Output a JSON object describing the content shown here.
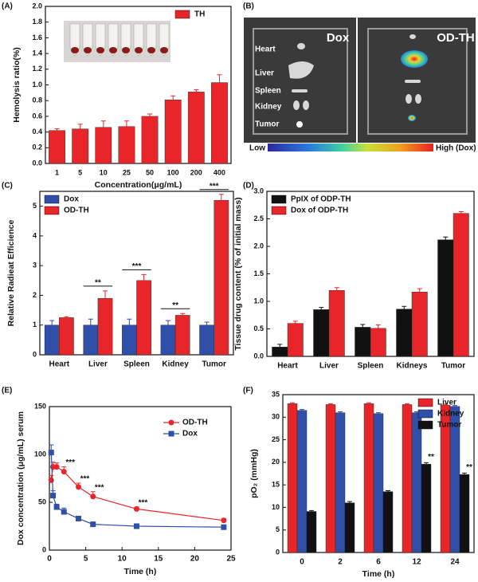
{
  "chart_data": [
    {
      "type": "bar",
      "panel": "(A)",
      "ylabel": "Hemolysis ratio(%)",
      "xlabel": "Concentration(μg/mL)",
      "categories": [
        "1",
        "5",
        "10",
        "25",
        "50",
        "100",
        "200",
        "400"
      ],
      "series": [
        {
          "name": "TH",
          "color": "#e8262a",
          "values": [
            0.42,
            0.44,
            0.46,
            0.47,
            0.6,
            0.81,
            0.91,
            1.03
          ],
          "errors": [
            0.02,
            0.06,
            0.08,
            0.07,
            0.03,
            0.05,
            0.03,
            0.1
          ]
        }
      ],
      "ylim": [
        0,
        2
      ],
      "yticks": [
        {
          "value": 0,
          "label": "0.0"
        },
        0.2,
        0.4,
        0.6,
        0.8,
        {
          "value": 1,
          "label": "1.0"
        },
        1.2,
        1.4,
        1.6,
        1.8,
        {
          "value": 2,
          "label": "2.0"
        }
      ],
      "legend": "top-right"
    },
    {
      "type": "image",
      "panel": "(B)",
      "images": [
        {
          "title": "Dox",
          "labels": [
            "Heart",
            "Liver",
            "Spleen",
            "Kidney",
            "Tumor"
          ]
        },
        {
          "title": "OD-TH"
        }
      ],
      "scale": {
        "low": "Low",
        "high": "High (Dox)"
      }
    },
    {
      "type": "bar",
      "panel": "(C)",
      "ylabel": "Relative Radieat Efficience",
      "categories": [
        "Heart",
        "Liver",
        "Spleen",
        "Kidney",
        "Tumor"
      ],
      "series": [
        {
          "name": "Dox",
          "color": "#2f4fa8",
          "values": [
            1,
            1,
            1,
            1,
            1
          ],
          "errors": [
            0.15,
            0.2,
            0.2,
            0.15,
            0.1
          ]
        },
        {
          "name": "OD-TH",
          "color": "#e8262a",
          "values": [
            1.25,
            1.9,
            2.5,
            1.33,
            5.2
          ],
          "errors": [
            0.03,
            0.25,
            0.2,
            0.06,
            0.2
          ],
          "significance": [
            null,
            "**",
            "***",
            "**",
            "***"
          ]
        }
      ],
      "significance_bracket": true,
      "ylim": [
        0,
        5.5
      ],
      "yticks": [
        0,
        1,
        2,
        3,
        4,
        5
      ],
      "legend": "top-left"
    },
    {
      "type": "bar",
      "panel": "(D)",
      "ylabel": "Tissue drug content (% of initial mass)",
      "categories": [
        "Heart",
        "Liver",
        "Spleen",
        "Kidneys",
        "Tumor"
      ],
      "series": [
        {
          "name": "PpIX of ODP-TH",
          "color": "#111111",
          "values": [
            0.17,
            0.85,
            0.53,
            0.86,
            2.12
          ],
          "errors": [
            0.05,
            0.04,
            0.05,
            0.05,
            0.05
          ]
        },
        {
          "name": "Dox of ODP-TH",
          "color": "#e8262a",
          "values": [
            0.6,
            1.2,
            0.51,
            1.17,
            2.6
          ],
          "errors": [
            0.04,
            0.05,
            0.06,
            0.06,
            0.03
          ]
        }
      ],
      "ylim": [
        0,
        3
      ],
      "yticks": [
        {
          "value": 0,
          "label": "0.0"
        },
        0.5,
        {
          "value": 1,
          "label": "1.0"
        },
        1.5,
        {
          "value": 2,
          "label": "2.0"
        },
        2.5,
        {
          "value": 3,
          "label": "3.0"
        }
      ],
      "legend": "top-left"
    },
    {
      "type": "line",
      "panel": "(E)",
      "ylabel": "Dox concentration (μg/mL) serum",
      "xlabel": "Time (h)",
      "x": [
        0.25,
        0.5,
        1,
        2,
        4,
        6,
        12,
        24
      ],
      "series": [
        {
          "name": "OD-TH",
          "color": "#e8262a",
          "marker": "circle",
          "values": [
            73,
            87,
            87,
            82,
            66,
            56,
            43,
            31
          ],
          "errors": [
            5,
            5,
            4,
            5,
            4,
            5,
            2,
            2
          ],
          "significance": [
            null,
            null,
            null,
            "***",
            "***",
            "***",
            "***",
            null
          ]
        },
        {
          "name": "Dox",
          "color": "#2f4fa8",
          "marker": "square",
          "values": [
            102,
            57,
            45,
            40,
            33,
            27,
            25,
            24
          ],
          "errors": [
            8,
            5,
            3,
            4,
            2,
            2,
            2,
            2
          ]
        }
      ],
      "xlim": [
        0,
        25
      ],
      "xticks": [
        0,
        5,
        10,
        15,
        20,
        25
      ],
      "ylim": [
        0,
        150
      ],
      "yticks": [
        0,
        50,
        100,
        150
      ],
      "legend": "top-right"
    },
    {
      "type": "bar",
      "panel": "(F)",
      "ylabel": "pO₂ (mmHg)",
      "xlabel": "Time (h)",
      "categories": [
        "0",
        "2",
        "6",
        "12",
        "24"
      ],
      "series": [
        {
          "name": "Liver",
          "color": "#e8262a",
          "values": [
            33,
            32.8,
            33,
            32.8,
            32.7
          ],
          "errors": [
            0.2,
            0.2,
            0.2,
            0.2,
            0.2
          ]
        },
        {
          "name": "Kidney",
          "color": "#2f4fa8",
          "values": [
            31.5,
            31,
            30.8,
            31,
            32.4
          ],
          "errors": [
            0.2,
            0.2,
            0.2,
            0.2,
            0.2
          ]
        },
        {
          "name": "Tumor",
          "color": "#111111",
          "values": [
            9.1,
            11,
            13.5,
            19.6,
            17.3
          ],
          "errors": [
            0.2,
            0.3,
            0.2,
            0.3,
            0.3
          ],
          "significance": [
            null,
            null,
            null,
            "**",
            "**"
          ]
        }
      ],
      "ylim": [
        0,
        35
      ],
      "yticks": [
        0,
        5,
        10,
        15,
        20,
        25,
        30,
        35
      ],
      "legend": "top-right"
    }
  ]
}
